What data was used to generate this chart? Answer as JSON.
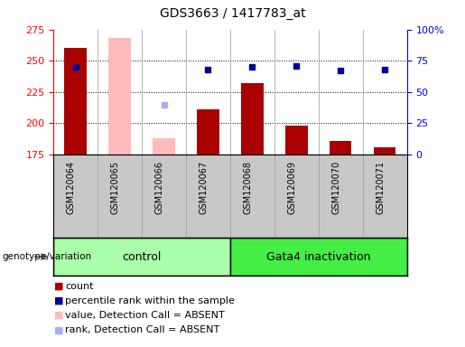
{
  "title": "GDS3663 / 1417783_at",
  "samples": [
    "GSM120064",
    "GSM120065",
    "GSM120066",
    "GSM120067",
    "GSM120068",
    "GSM120069",
    "GSM120070",
    "GSM120071"
  ],
  "red_bars": [
    260,
    null,
    null,
    211,
    232,
    198,
    186,
    181
  ],
  "pink_bars": [
    null,
    268,
    188,
    null,
    null,
    null,
    null,
    null
  ],
  "blue_squares": [
    70,
    null,
    null,
    68,
    70,
    71,
    67,
    68
  ],
  "light_blue_squares": [
    null,
    null,
    40,
    null,
    null,
    null,
    null,
    null
  ],
  "ylim_left": [
    175,
    275
  ],
  "ylim_right": [
    0,
    100
  ],
  "yticks_left": [
    175,
    200,
    225,
    250,
    275
  ],
  "yticks_right": [
    0,
    25,
    50,
    75,
    100
  ],
  "ytick_labels_right": [
    "0",
    "25",
    "50",
    "75",
    "100%"
  ],
  "groups": {
    "control": [
      0,
      1,
      2,
      3
    ],
    "gata4": [
      4,
      5,
      6,
      7
    ]
  },
  "group_labels": [
    "control",
    "Gata4 inactivation"
  ],
  "control_color": "#AAFFAA",
  "gata4_color": "#44EE44",
  "bar_width": 0.5,
  "red_color": "#AA0000",
  "pink_color": "#FFBBBB",
  "blue_color": "#000099",
  "light_blue_color": "#AAAAFF",
  "xlabel_area_color": "#C8C8C8",
  "legend_items": [
    {
      "label": "count",
      "color": "#AA0000"
    },
    {
      "label": "percentile rank within the sample",
      "color": "#000099"
    },
    {
      "label": "value, Detection Call = ABSENT",
      "color": "#FFBBBB"
    },
    {
      "label": "rank, Detection Call = ABSENT",
      "color": "#AAAAFF"
    }
  ],
  "genotype_label": "genotype/variation",
  "title_fontsize": 10,
  "tick_fontsize": 8,
  "legend_fontsize": 8
}
